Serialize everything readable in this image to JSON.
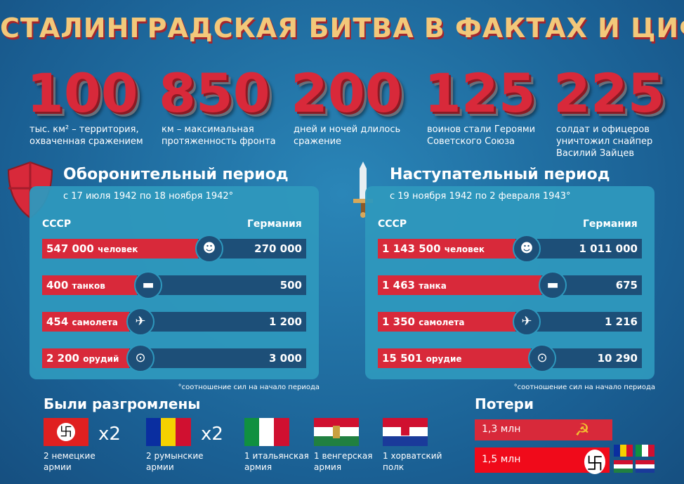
{
  "title": "СТАЛИНГРАДСКАЯ БИТВА В ФАКТАХ И ЦИФРАХ",
  "stats": [
    {
      "number": "100",
      "lines": [
        "тыс. км² – территория,",
        "охваченная сражением"
      ]
    },
    {
      "number": "850",
      "lines": [
        "км – максимальная",
        "протяженность фронта"
      ]
    },
    {
      "number": "200",
      "lines": [
        "дней и ночей длилось",
        "сражение"
      ]
    },
    {
      "number": "125",
      "lines": [
        "воинов стали Героями",
        "Советского Союза"
      ]
    },
    {
      "number": "225",
      "lines": [
        "солдат и офицеров",
        "уничтожил снайпер",
        "Василий Зайцев"
      ]
    }
  ],
  "periods": [
    {
      "title": "Оборонительный период",
      "dates": "с 17 июля 1942 по 18 ноября 1942°",
      "left": "СССР",
      "right": "Германия",
      "rows": [
        {
          "value": "547 000",
          "unit": "человек",
          "other": "270 000"
        },
        {
          "value": "400",
          "unit": "танков",
          "other": "500"
        },
        {
          "value": "454",
          "unit": "самолета",
          "other": "1 200"
        },
        {
          "value": "2 200",
          "unit": "орудий",
          "other": "3 000"
        }
      ],
      "note": "°соотношение сил на начало периода"
    },
    {
      "title": "Наступательный период",
      "dates": "с 19 ноября 1942 по 2 февраля 1943°",
      "left": "СССР",
      "right": "Германия",
      "rows": [
        {
          "value": "1 143 500",
          "unit": "человек",
          "other": "1 011 000"
        },
        {
          "value": "1 463",
          "unit": "танка",
          "other": "675"
        },
        {
          "value": "1 350",
          "unit": "самолета",
          "other": "1 216"
        },
        {
          "value": "15 501",
          "unit": "орудие",
          "other": "10 290"
        }
      ],
      "note": "°соотношение сил на начало периода"
    }
  ],
  "defeated": {
    "title": "Были разгромлены",
    "items": [
      {
        "multiplier": "x2",
        "lines": [
          "2 немецкие",
          "армии"
        ]
      },
      {
        "multiplier": "x2",
        "lines": [
          "2 румынские",
          "армии"
        ]
      },
      {
        "lines": [
          "1 итальянская",
          "армия"
        ]
      },
      {
        "lines": [
          "1 венгерская",
          "армия"
        ]
      },
      {
        "lines": [
          "1 хорватский",
          "полк"
        ]
      }
    ]
  },
  "losses": {
    "title": "Потери",
    "rows": [
      "1,3 млн",
      "1,5 млн"
    ]
  }
}
